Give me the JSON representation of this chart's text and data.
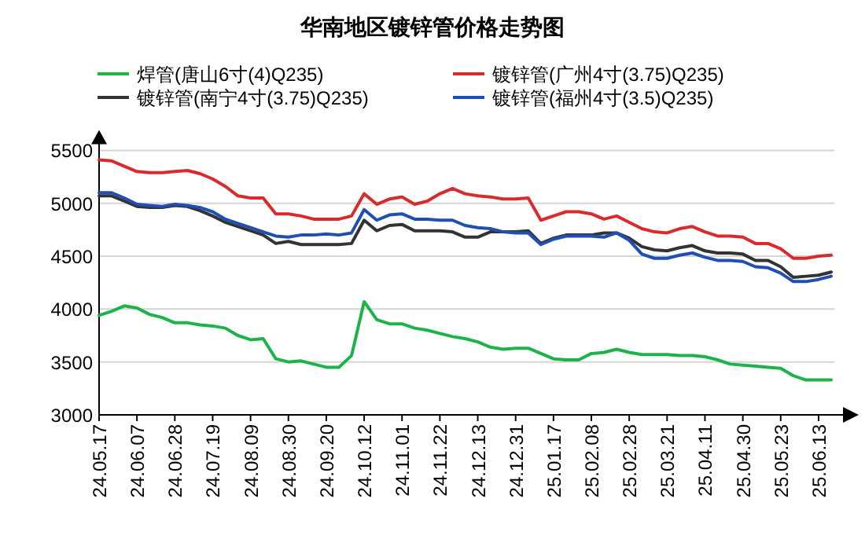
{
  "chart_data": {
    "type": "line",
    "title": "华南地区镀锌管价格走势图",
    "categories": [
      "24.05.17",
      null,
      null,
      "24.06.07",
      null,
      null,
      "24.06.28",
      null,
      null,
      "24.07.19",
      null,
      null,
      "24.08.09",
      null,
      null,
      "24.08.30",
      null,
      null,
      "24.09.20",
      null,
      null,
      "24.10.12",
      null,
      null,
      "24.11.01",
      null,
      null,
      "24.11.22",
      null,
      null,
      "24.12.13",
      null,
      null,
      "24.12.31",
      null,
      null,
      "25.01.17",
      null,
      null,
      "25.02.08",
      null,
      null,
      "25.02.28",
      null,
      null,
      "25.03.21",
      null,
      null,
      "25.04.11",
      null,
      null,
      "25.04.30",
      null,
      null,
      "25.05.23",
      null,
      null,
      "25.06.13",
      null
    ],
    "series": [
      {
        "name": "焊管(唐山6寸(4)Q235)",
        "color": "#1db34a",
        "values": [
          3940,
          3980,
          4030,
          4010,
          3950,
          3920,
          3870,
          3870,
          3850,
          3840,
          3820,
          3750,
          3710,
          3720,
          3530,
          3500,
          3510,
          3480,
          3450,
          3450,
          3560,
          4070,
          3900,
          3860,
          3860,
          3820,
          3800,
          3770,
          3740,
          3720,
          3690,
          3640,
          3620,
          3630,
          3630,
          3580,
          3530,
          3520,
          3520,
          3580,
          3590,
          3620,
          3590,
          3570,
          3570,
          3570,
          3560,
          3560,
          3550,
          3520,
          3480,
          3470,
          3460,
          3450,
          3440,
          3370,
          3330,
          3330,
          3330
        ]
      },
      {
        "name": "镀锌管(广州4寸(3.75)Q235)",
        "color": "#d92b2b",
        "values": [
          5410,
          5400,
          5350,
          5300,
          5290,
          5290,
          5300,
          5310,
          5280,
          5230,
          5160,
          5070,
          5050,
          5050,
          4900,
          4900,
          4880,
          4850,
          4850,
          4850,
          4880,
          5090,
          4990,
          5040,
          5060,
          4990,
          5020,
          5090,
          5140,
          5090,
          5070,
          5060,
          5040,
          5040,
          5050,
          4840,
          4880,
          4920,
          4920,
          4900,
          4850,
          4880,
          4820,
          4760,
          4730,
          4720,
          4760,
          4780,
          4730,
          4690,
          4690,
          4680,
          4620,
          4620,
          4570,
          4480,
          4480,
          4500,
          4510
        ]
      },
      {
        "name": "镀锌管(南宁4寸(3.75)Q235)",
        "color": "#333333",
        "values": [
          5070,
          5070,
          5020,
          4970,
          4960,
          4960,
          4980,
          4970,
          4930,
          4880,
          4820,
          4780,
          4740,
          4700,
          4620,
          4640,
          4610,
          4610,
          4610,
          4610,
          4620,
          4840,
          4740,
          4790,
          4800,
          4740,
          4740,
          4740,
          4730,
          4680,
          4680,
          4730,
          4730,
          4730,
          4740,
          4620,
          4670,
          4700,
          4700,
          4700,
          4720,
          4720,
          4670,
          4590,
          4560,
          4550,
          4580,
          4600,
          4550,
          4530,
          4530,
          4520,
          4460,
          4460,
          4400,
          4300,
          4310,
          4320,
          4350
        ]
      },
      {
        "name": "镀锌管(福州4寸(3.5)Q235)",
        "color": "#1f4fb4",
        "values": [
          5100,
          5100,
          5050,
          4990,
          4980,
          4970,
          4990,
          4980,
          4960,
          4920,
          4850,
          4810,
          4770,
          4730,
          4690,
          4680,
          4700,
          4700,
          4710,
          4700,
          4720,
          4940,
          4840,
          4890,
          4900,
          4850,
          4850,
          4840,
          4840,
          4790,
          4770,
          4760,
          4730,
          4720,
          4720,
          4610,
          4660,
          4690,
          4690,
          4690,
          4680,
          4720,
          4650,
          4520,
          4480,
          4480,
          4510,
          4530,
          4490,
          4460,
          4460,
          4450,
          4400,
          4390,
          4340,
          4260,
          4260,
          4280,
          4310
        ]
      }
    ],
    "ylim": [
      3000,
      5500
    ],
    "yticks": [
      3000,
      3500,
      4000,
      4500,
      5000,
      5500
    ],
    "grid": "y",
    "legend": "top",
    "marker": "none",
    "line_style": "solid"
  }
}
